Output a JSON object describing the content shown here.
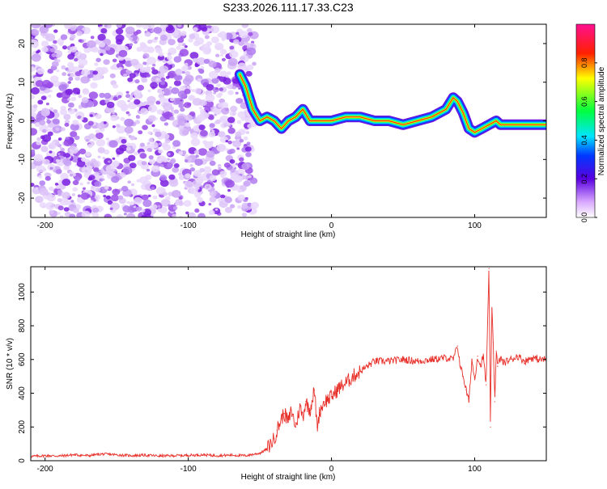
{
  "figure_title": "S233.2026.111.17.33.C23",
  "chart_data": [
    {
      "type": "heatmap",
      "xlabel": "Height of straight line (km)",
      "ylabel": "Frequency (Hz)",
      "xlim": [
        -210,
        150
      ],
      "ylim": [
        -25,
        25
      ],
      "xticks": [
        -200,
        -100,
        0,
        100
      ],
      "yticks": [
        -20,
        -10,
        0,
        10,
        20
      ],
      "noise_region_x": [
        -210,
        -58
      ],
      "ridge": {
        "x": [
          -64,
          -60,
          -55,
          -50,
          -45,
          -40,
          -35,
          -30,
          -25,
          -20,
          -15,
          -10,
          -5,
          0,
          10,
          20,
          30,
          40,
          50,
          60,
          70,
          80,
          85,
          88,
          92,
          96,
          100,
          105,
          110,
          115,
          118,
          120,
          130,
          140,
          150
        ],
        "y": [
          12,
          9,
          3,
          0,
          1,
          0,
          -2,
          0,
          1,
          3,
          0,
          0,
          0,
          0,
          1,
          1,
          0,
          0,
          -1,
          0,
          1,
          3,
          6,
          5,
          2,
          -2,
          -3,
          -2,
          -1,
          0,
          -1,
          -1,
          -1,
          -1,
          -1
        ]
      },
      "colorbar": {
        "label": "Normalized spectral amplitude",
        "ticks": [
          "0.0",
          "0.2",
          "0.4",
          "0.6",
          "0.8"
        ],
        "range": [
          0,
          1
        ]
      }
    },
    {
      "type": "line",
      "xlabel": "Height of straight line (km)",
      "ylabel": "SNR (10 * v/v)",
      "xlim": [
        -210,
        150
      ],
      "ylim": [
        0,
        1150
      ],
      "xticks": [
        -200,
        -100,
        0,
        100
      ],
      "yticks": [
        0,
        200,
        400,
        600,
        800,
        1000
      ],
      "color": "#e8302a",
      "series": {
        "name": "SNR",
        "x": [
          -210,
          -200,
          -190,
          -180,
          -170,
          -160,
          -150,
          -140,
          -130,
          -120,
          -110,
          -100,
          -90,
          -80,
          -70,
          -60,
          -50,
          -45,
          -40,
          -38,
          -35,
          -33,
          -30,
          -28,
          -25,
          -22,
          -20,
          -18,
          -15,
          -12,
          -10,
          -8,
          -5,
          0,
          5,
          10,
          15,
          20,
          25,
          30,
          40,
          50,
          60,
          70,
          80,
          85,
          88,
          90,
          92,
          94,
          96,
          98,
          100,
          102,
          104,
          106,
          108,
          110,
          111,
          112,
          113,
          114,
          115,
          116,
          118,
          120,
          125,
          130,
          135,
          140,
          145,
          150
        ],
        "y": [
          25,
          30,
          28,
          35,
          30,
          40,
          35,
          30,
          33,
          28,
          30,
          32,
          35,
          30,
          33,
          30,
          45,
          70,
          130,
          180,
          250,
          280,
          230,
          300,
          200,
          320,
          260,
          350,
          300,
          420,
          200,
          300,
          350,
          380,
          430,
          460,
          500,
          530,
          560,
          590,
          590,
          600,
          590,
          600,
          610,
          600,
          680,
          560,
          500,
          420,
          350,
          600,
          480,
          620,
          560,
          620,
          450,
          1140,
          200,
          900,
          700,
          350,
          650,
          560,
          610,
          580,
          600,
          620,
          590,
          610,
          600,
          600
        ]
      }
    }
  ]
}
